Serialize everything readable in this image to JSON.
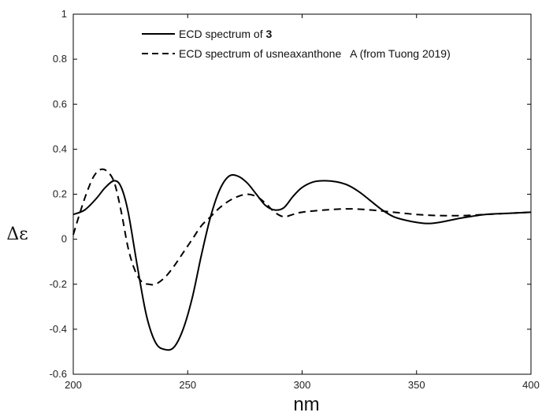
{
  "chart_data": {
    "type": "line",
    "xlabel": "nm",
    "ylabel": "Δε",
    "xlim": [
      200,
      400
    ],
    "ylim": [
      -0.6,
      1
    ],
    "xticks": [
      "200",
      "250",
      "300",
      "350",
      "400"
    ],
    "yticks": [
      "-0.6",
      "-0.4",
      "-0.2",
      "0",
      "0.2",
      "0.4",
      "0.6",
      "0.8",
      "1"
    ],
    "grid": false,
    "legend_position": "top-right",
    "legend": {
      "entry1_prefix": "ECD spectrum of ",
      "entry1_bold": "3",
      "entry2": "ECD spectrum of usneaxanthone   A (from Tuong 2019)"
    },
    "series": [
      {
        "name": "ECD spectrum of 3",
        "style": "solid",
        "color": "#000000",
        "x": [
          200,
          205,
          210,
          214,
          218,
          221,
          224,
          228,
          232,
          236,
          240,
          244,
          248,
          252,
          256,
          260,
          264,
          268,
          272,
          276,
          280,
          284,
          288,
          292,
          296,
          300,
          305,
          310,
          315,
          320,
          325,
          330,
          335,
          340,
          345,
          350,
          355,
          360,
          365,
          370,
          380,
          390,
          400
        ],
        "y": [
          0.11,
          0.13,
          0.18,
          0.23,
          0.26,
          0.23,
          0.12,
          -0.12,
          -0.34,
          -0.46,
          -0.49,
          -0.48,
          -0.4,
          -0.26,
          -0.07,
          0.1,
          0.22,
          0.28,
          0.28,
          0.25,
          0.2,
          0.15,
          0.13,
          0.14,
          0.19,
          0.23,
          0.255,
          0.26,
          0.255,
          0.24,
          0.21,
          0.17,
          0.13,
          0.1,
          0.085,
          0.075,
          0.07,
          0.075,
          0.085,
          0.095,
          0.11,
          0.115,
          0.12
        ]
      },
      {
        "name": "ECD spectrum of usneaxanthone   A (from Tuong 2019)",
        "style": "dashed",
        "color": "#000000",
        "x": [
          200,
          203,
          206,
          209,
          212,
          215,
          218,
          221,
          224,
          227,
          230,
          233,
          236,
          240,
          244,
          248,
          252,
          256,
          260,
          264,
          268,
          272,
          276,
          280,
          284,
          288,
          292,
          296,
          300,
          310,
          320,
          330,
          340,
          350,
          360,
          370,
          380,
          390,
          400
        ],
        "y": [
          0.02,
          0.12,
          0.21,
          0.28,
          0.31,
          0.3,
          0.25,
          0.12,
          -0.04,
          -0.14,
          -0.19,
          -0.2,
          -0.2,
          -0.17,
          -0.12,
          -0.06,
          0.0,
          0.06,
          0.1,
          0.14,
          0.17,
          0.19,
          0.2,
          0.19,
          0.16,
          0.12,
          0.1,
          0.11,
          0.12,
          0.13,
          0.135,
          0.13,
          0.12,
          0.11,
          0.105,
          0.105,
          0.11,
          0.115,
          0.12
        ]
      }
    ]
  }
}
